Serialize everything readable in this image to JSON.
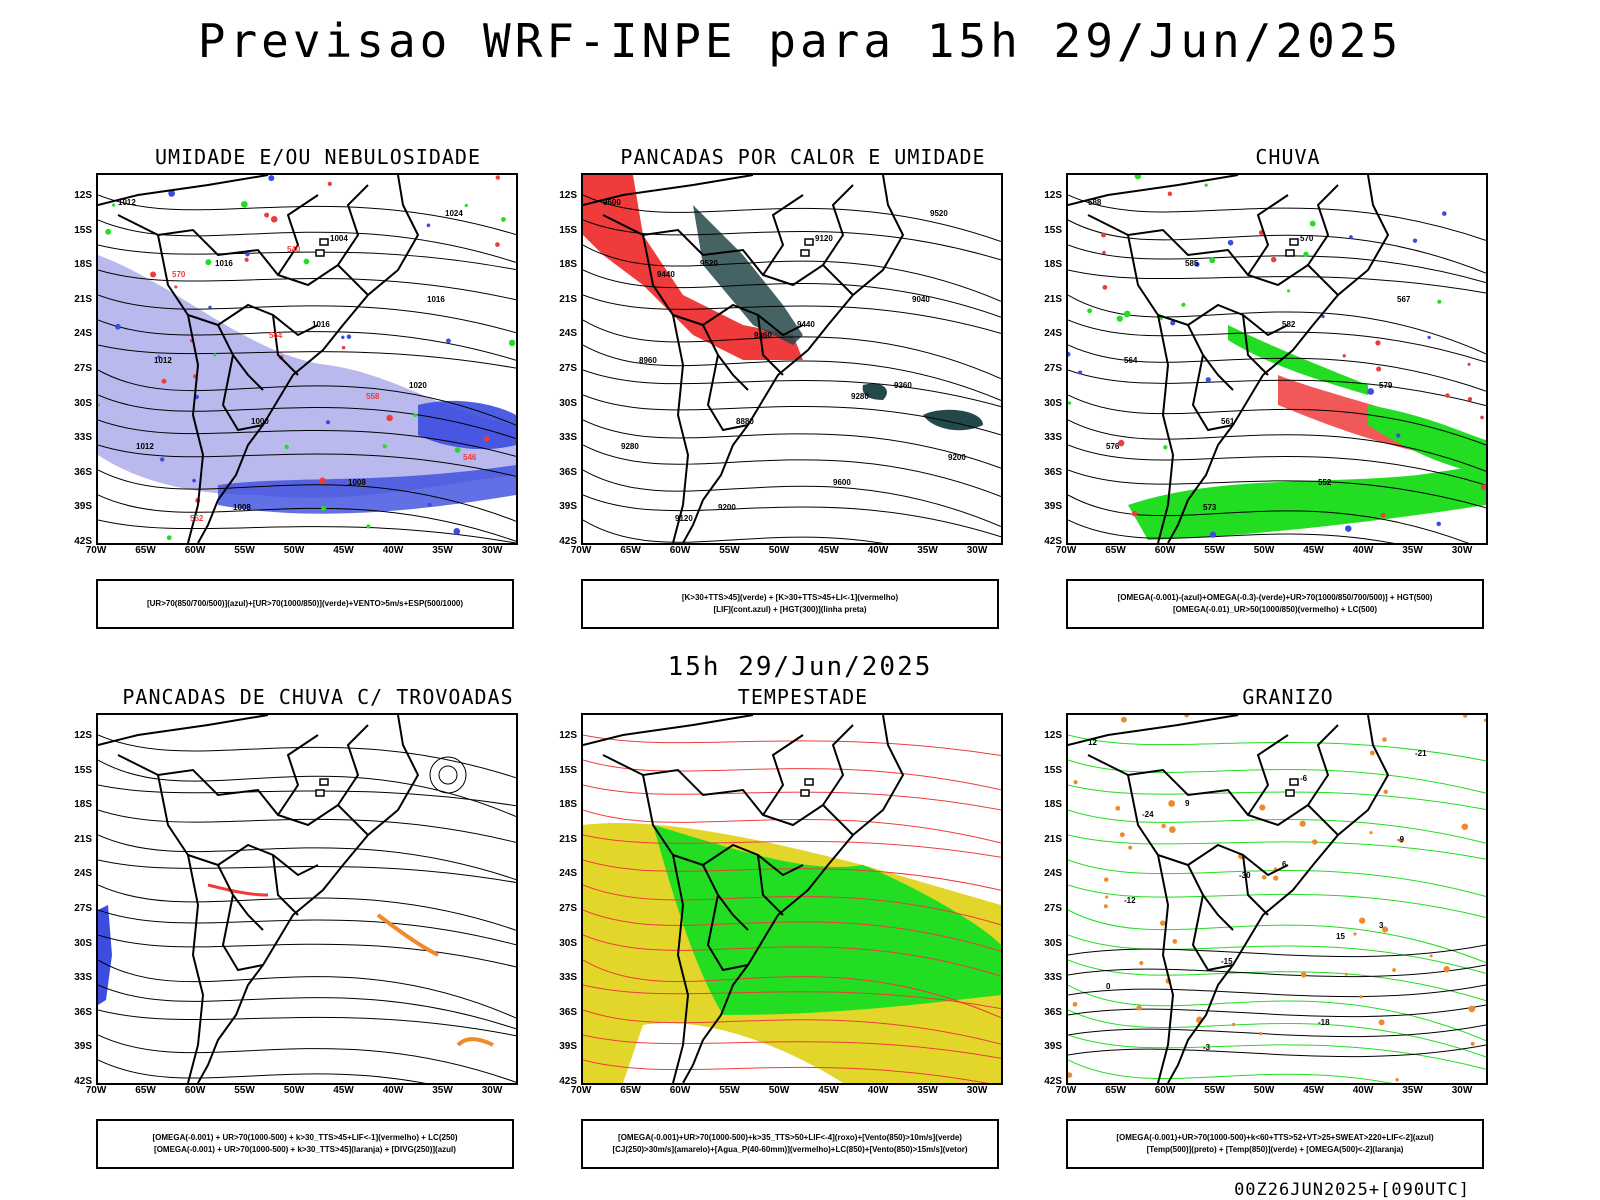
{
  "title": "Previsao WRF-INPE  para 15h 29/Jun/2025",
  "mid_label": "15h 29/Jun/2025",
  "footer": "00Z26JUN2025+[090UTC]",
  "lat_labels": [
    "12S",
    "15S",
    "18S",
    "21S",
    "24S",
    "27S",
    "30S",
    "33S",
    "36S",
    "39S",
    "42S"
  ],
  "lon_labels": [
    "70W",
    "65W",
    "60W",
    "55W",
    "50W",
    "45W",
    "40W",
    "35W",
    "30W"
  ],
  "colors": {
    "blue": "#3b4cdf",
    "green": "#22dd22",
    "red": "#ef3b3b",
    "orange": "#ee8a2a",
    "yellow": "#e3d62a",
    "darkteal": "#24484a",
    "lavender": "#a9a8e8"
  },
  "panels": [
    {
      "title": "UMIDADE E/OU NEBULOSIDADE",
      "legend": [
        "[UR>70(850/700/500)](azul)+[UR>70(1000/850)](verde)+VENTO>5m/s+ESP(500/1000)"
      ],
      "labels": [
        "1012",
        "1016",
        "1016",
        "1020",
        "1012",
        "1008",
        "1004",
        "1016",
        "1012",
        "1000",
        "1008",
        "1024",
        "570",
        "564",
        "558",
        "546",
        "552",
        "540"
      ]
    },
    {
      "title": "PANCADAS POR CALOR E UMIDADE",
      "legend": [
        "[K>30+TTS>45](verde) + [K>30+TTS>45+LI<-1](vermelho)",
        "[LIF](cont.azul) + [HGT(300)](linha preta)"
      ],
      "labels": [
        "9600",
        "9520",
        "9440",
        "9360",
        "9280",
        "9200",
        "9120",
        "9040",
        "8960",
        "8880",
        "9600",
        "9520",
        "9440",
        "9360",
        "9280",
        "9200",
        "9120"
      ]
    },
    {
      "title": "CHUVA",
      "legend": [
        "[OMEGA(-0.001)-(azul)+OMEGA(-0.3)-(verde)+UR>70(1000/850/700/500)] + HGT(500)",
        "[OMEGA(-0.01)_UR>50(1000/850)(vermelho) + LC(500)"
      ],
      "labels": [
        "588",
        "585",
        "582",
        "579",
        "576",
        "573",
        "570",
        "567",
        "564",
        "561",
        "552"
      ]
    },
    {
      "title": "PANCADAS DE CHUVA C/ TROVOADAS",
      "legend": [
        "[OMEGA(-0.001) + UR>70(1000-500) + k>30_TTS>45+LIF<-1](vermelho) + LC(250)",
        "[OMEGA(-0.001) + UR>70(1000-500) + k>30_TTS>45](laranja) + [DIVG(250)](azul)"
      ],
      "labels": []
    },
    {
      "title": "TEMPESTADE",
      "legend": [
        "[OMEGA(-0.001)+UR>70(1000-500)+k>35_TTS>50+LIF<-4](roxo)+[Vento(850)>10m/s](verde)",
        "[CJ(250)>30m/s](amarelo)+[Agua_P(40-60mm)](vermelho)+LC(850)+[Vento(850)>15m/s](vetor)"
      ],
      "labels": []
    },
    {
      "title": "GRANIZO",
      "legend": [
        "[OMEGA(-0.001)+UR>70(1000-500)+k<60+TTS>52+VT>25+SWEAT>220+LIF<-2](azul)",
        "[Temp(500)](preto) + [Temp(850)](verde) + [OMEGA(500)<-2](laranja)"
      ],
      "labels": [
        "12",
        "9",
        "6",
        "3",
        "0",
        "-3",
        "-6",
        "-9",
        "-12",
        "-15",
        "-18",
        "-21",
        "-24",
        "-30",
        "15"
      ]
    }
  ]
}
